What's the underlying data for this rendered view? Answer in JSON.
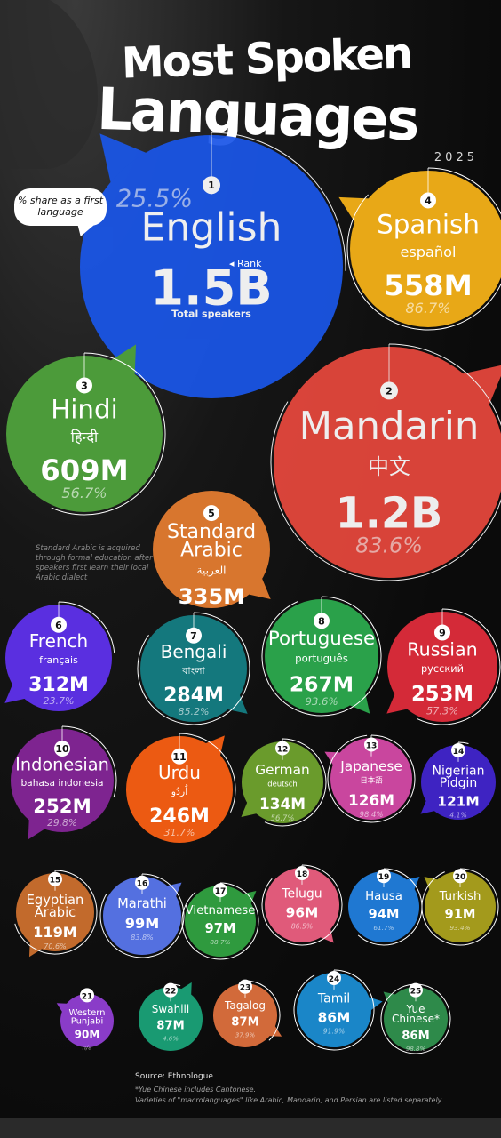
{
  "header": {
    "title_line1": "Most Spoken",
    "title_line2": "Languages",
    "year": "2025"
  },
  "legend": {
    "share_label": "% share as a first language",
    "rank_label": "Rank"
  },
  "notes": {
    "arabic": "Standard Arabic is acquired through formal education after speakers first learn their local Arabic dialect",
    "source": "Source: Ethnologue",
    "yue": "*Yue Chinese includes Cantonese.",
    "macro": "Varieties of \"macrolanguages\" like Arabic, Mandarin, and Persian are listed separately."
  },
  "chart_data": {
    "type": "bubble",
    "title": "Most Spoken Languages",
    "subtitle": "2025",
    "size_label": "Total speakers",
    "share_label": "% share as a first language",
    "languages": [
      {
        "rank": 1,
        "name": "English",
        "native": "",
        "speakers": "1.5B",
        "speakers_m": 1500,
        "share": "25.5%",
        "color": "#1a56e8"
      },
      {
        "rank": 2,
        "name": "Mandarin",
        "native": "中文",
        "speakers": "1.2B",
        "speakers_m": 1200,
        "share": "83.6%",
        "color": "#e8483d"
      },
      {
        "rank": 3,
        "name": "Hindi",
        "native": "हिन्दी",
        "speakers": "609M",
        "speakers_m": 609,
        "share": "56.7%",
        "color": "#4c9b3a"
      },
      {
        "rank": 4,
        "name": "Spanish",
        "native": "español",
        "speakers": "558M",
        "speakers_m": 558,
        "share": "86.7%",
        "color": "#e8a817"
      },
      {
        "rank": 5,
        "name": "Standard Arabic",
        "native": "العربية",
        "speakers": "335M",
        "speakers_m": 335,
        "share": "",
        "color": "#d8762e"
      },
      {
        "rank": 6,
        "name": "French",
        "native": "français",
        "speakers": "312M",
        "speakers_m": 312,
        "share": "23.7%",
        "color": "#5a2fe0"
      },
      {
        "rank": 7,
        "name": "Bengali",
        "native": "বাংলা",
        "speakers": "284M",
        "speakers_m": 284,
        "share": "85.2%",
        "color": "#14787d"
      },
      {
        "rank": 8,
        "name": "Portuguese",
        "native": "português",
        "speakers": "267M",
        "speakers_m": 267,
        "share": "93.6%",
        "color": "#2aa14a"
      },
      {
        "rank": 9,
        "name": "Russian",
        "native": "русский",
        "speakers": "253M",
        "speakers_m": 253,
        "share": "57.3%",
        "color": "#d42a38"
      },
      {
        "rank": 10,
        "name": "Indonesian",
        "native": "bahasa indonesia",
        "speakers": "252M",
        "speakers_m": 252,
        "share": "29.8%",
        "color": "#7e2490"
      },
      {
        "rank": 11,
        "name": "Urdu",
        "native": "اُردُو",
        "speakers": "246M",
        "speakers_m": 246,
        "share": "31.7%",
        "color": "#ec5a12"
      },
      {
        "rank": 12,
        "name": "German",
        "native": "deutsch",
        "speakers": "134M",
        "speakers_m": 134,
        "share": "56.7%",
        "color": "#6a9b2c"
      },
      {
        "rank": 13,
        "name": "Japanese",
        "native": "日本語",
        "speakers": "126M",
        "speakers_m": 126,
        "share": "98.4%",
        "color": "#c9469e"
      },
      {
        "rank": 14,
        "name": "Nigerian Pidgin",
        "native": "",
        "speakers": "121M",
        "speakers_m": 121,
        "share": "4.1%",
        "color": "#3e23c2"
      },
      {
        "rank": 15,
        "name": "Egyptian Arabic",
        "native": "",
        "speakers": "119M",
        "speakers_m": 119,
        "share": "70.6%",
        "color": "#c26a2c"
      },
      {
        "rank": 16,
        "name": "Marathi",
        "native": "",
        "speakers": "99M",
        "speakers_m": 99,
        "share": "83.8%",
        "color": "#5470e0"
      },
      {
        "rank": 17,
        "name": "Vietnamese",
        "native": "",
        "speakers": "97M",
        "speakers_m": 97,
        "share": "88.7%",
        "color": "#2f9a3e"
      },
      {
        "rank": 18,
        "name": "Telugu",
        "native": "",
        "speakers": "96M",
        "speakers_m": 96,
        "share": "86.5%",
        "color": "#e05a7a"
      },
      {
        "rank": 19,
        "name": "Hausa",
        "native": "",
        "speakers": "94M",
        "speakers_m": 94,
        "share": "61.7%",
        "color": "#1f78d2"
      },
      {
        "rank": 20,
        "name": "Turkish",
        "native": "",
        "speakers": "91M",
        "speakers_m": 91,
        "share": "93.4%",
        "color": "#a39a1c"
      },
      {
        "rank": 21,
        "name": "Western Punjabi",
        "native": "",
        "speakers": "90M",
        "speakers_m": 90,
        "share": "n/a",
        "color": "#8a3cc8"
      },
      {
        "rank": 22,
        "name": "Swahili",
        "native": "",
        "speakers": "87M",
        "speakers_m": 87,
        "share": "4.6%",
        "color": "#199a72"
      },
      {
        "rank": 23,
        "name": "Tagalog",
        "native": "",
        "speakers": "87M",
        "speakers_m": 87,
        "share": "37.9%",
        "color": "#d26a3a"
      },
      {
        "rank": 24,
        "name": "Tamil",
        "native": "",
        "speakers": "86M",
        "speakers_m": 86,
        "share": "91.9%",
        "color": "#1a86c8"
      },
      {
        "rank": 25,
        "name": "Yue Chinese*",
        "native": "",
        "speakers": "86M",
        "speakers_m": 86,
        "share": "98.8%",
        "color": "#2e8a4a"
      }
    ]
  }
}
